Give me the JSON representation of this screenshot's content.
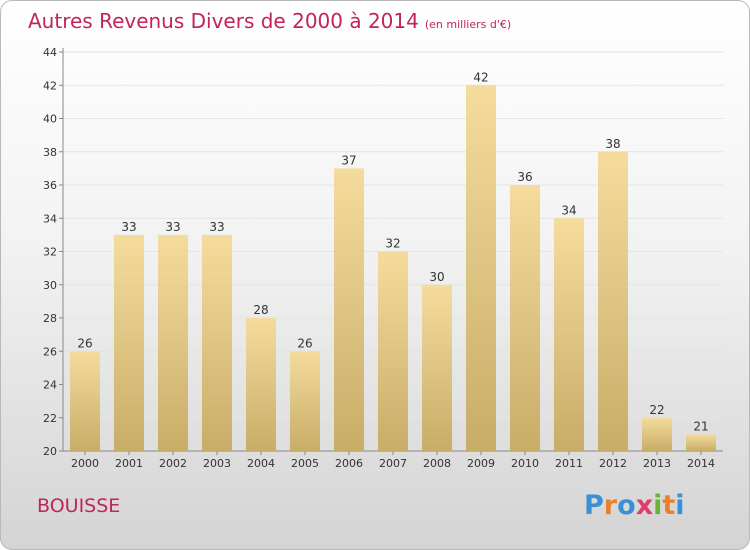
{
  "title": "Autres Revenus Divers de 2000 à 2014",
  "unit_note": "(en milliers d'€)",
  "commune": "BOUISSE",
  "logo": {
    "letters": [
      "P",
      "r",
      "o",
      "x",
      "i",
      "t",
      "i"
    ],
    "colors": [
      "#3a8fd6",
      "#e8822a",
      "#3a8fd6",
      "#e23b6e",
      "#6ab43a",
      "#e8822a",
      "#3a8fd6"
    ]
  },
  "colors": {
    "title": "#c2245a",
    "bar_light": "#f5dc9c",
    "bar_dark": "#c8ad68",
    "grid": "#e4e4e4"
  },
  "chart_data": {
    "type": "bar",
    "title": "Autres Revenus Divers de 2000 à 2014",
    "subtitle": "(en milliers d'€)",
    "categories": [
      "2000",
      "2001",
      "2002",
      "2003",
      "2004",
      "2005",
      "2006",
      "2007",
      "2008",
      "2009",
      "2010",
      "2011",
      "2012",
      "2013",
      "2014"
    ],
    "values": [
      26,
      33,
      33,
      33,
      28,
      26,
      37,
      32,
      30,
      42,
      36,
      34,
      38,
      22,
      21
    ],
    "ylim": [
      20,
      44
    ],
    "yticks": [
      20,
      22,
      24,
      26,
      28,
      30,
      32,
      34,
      36,
      38,
      40,
      42,
      44
    ],
    "xlabel": "",
    "ylabel": "",
    "grid": true,
    "data_labels": true
  }
}
